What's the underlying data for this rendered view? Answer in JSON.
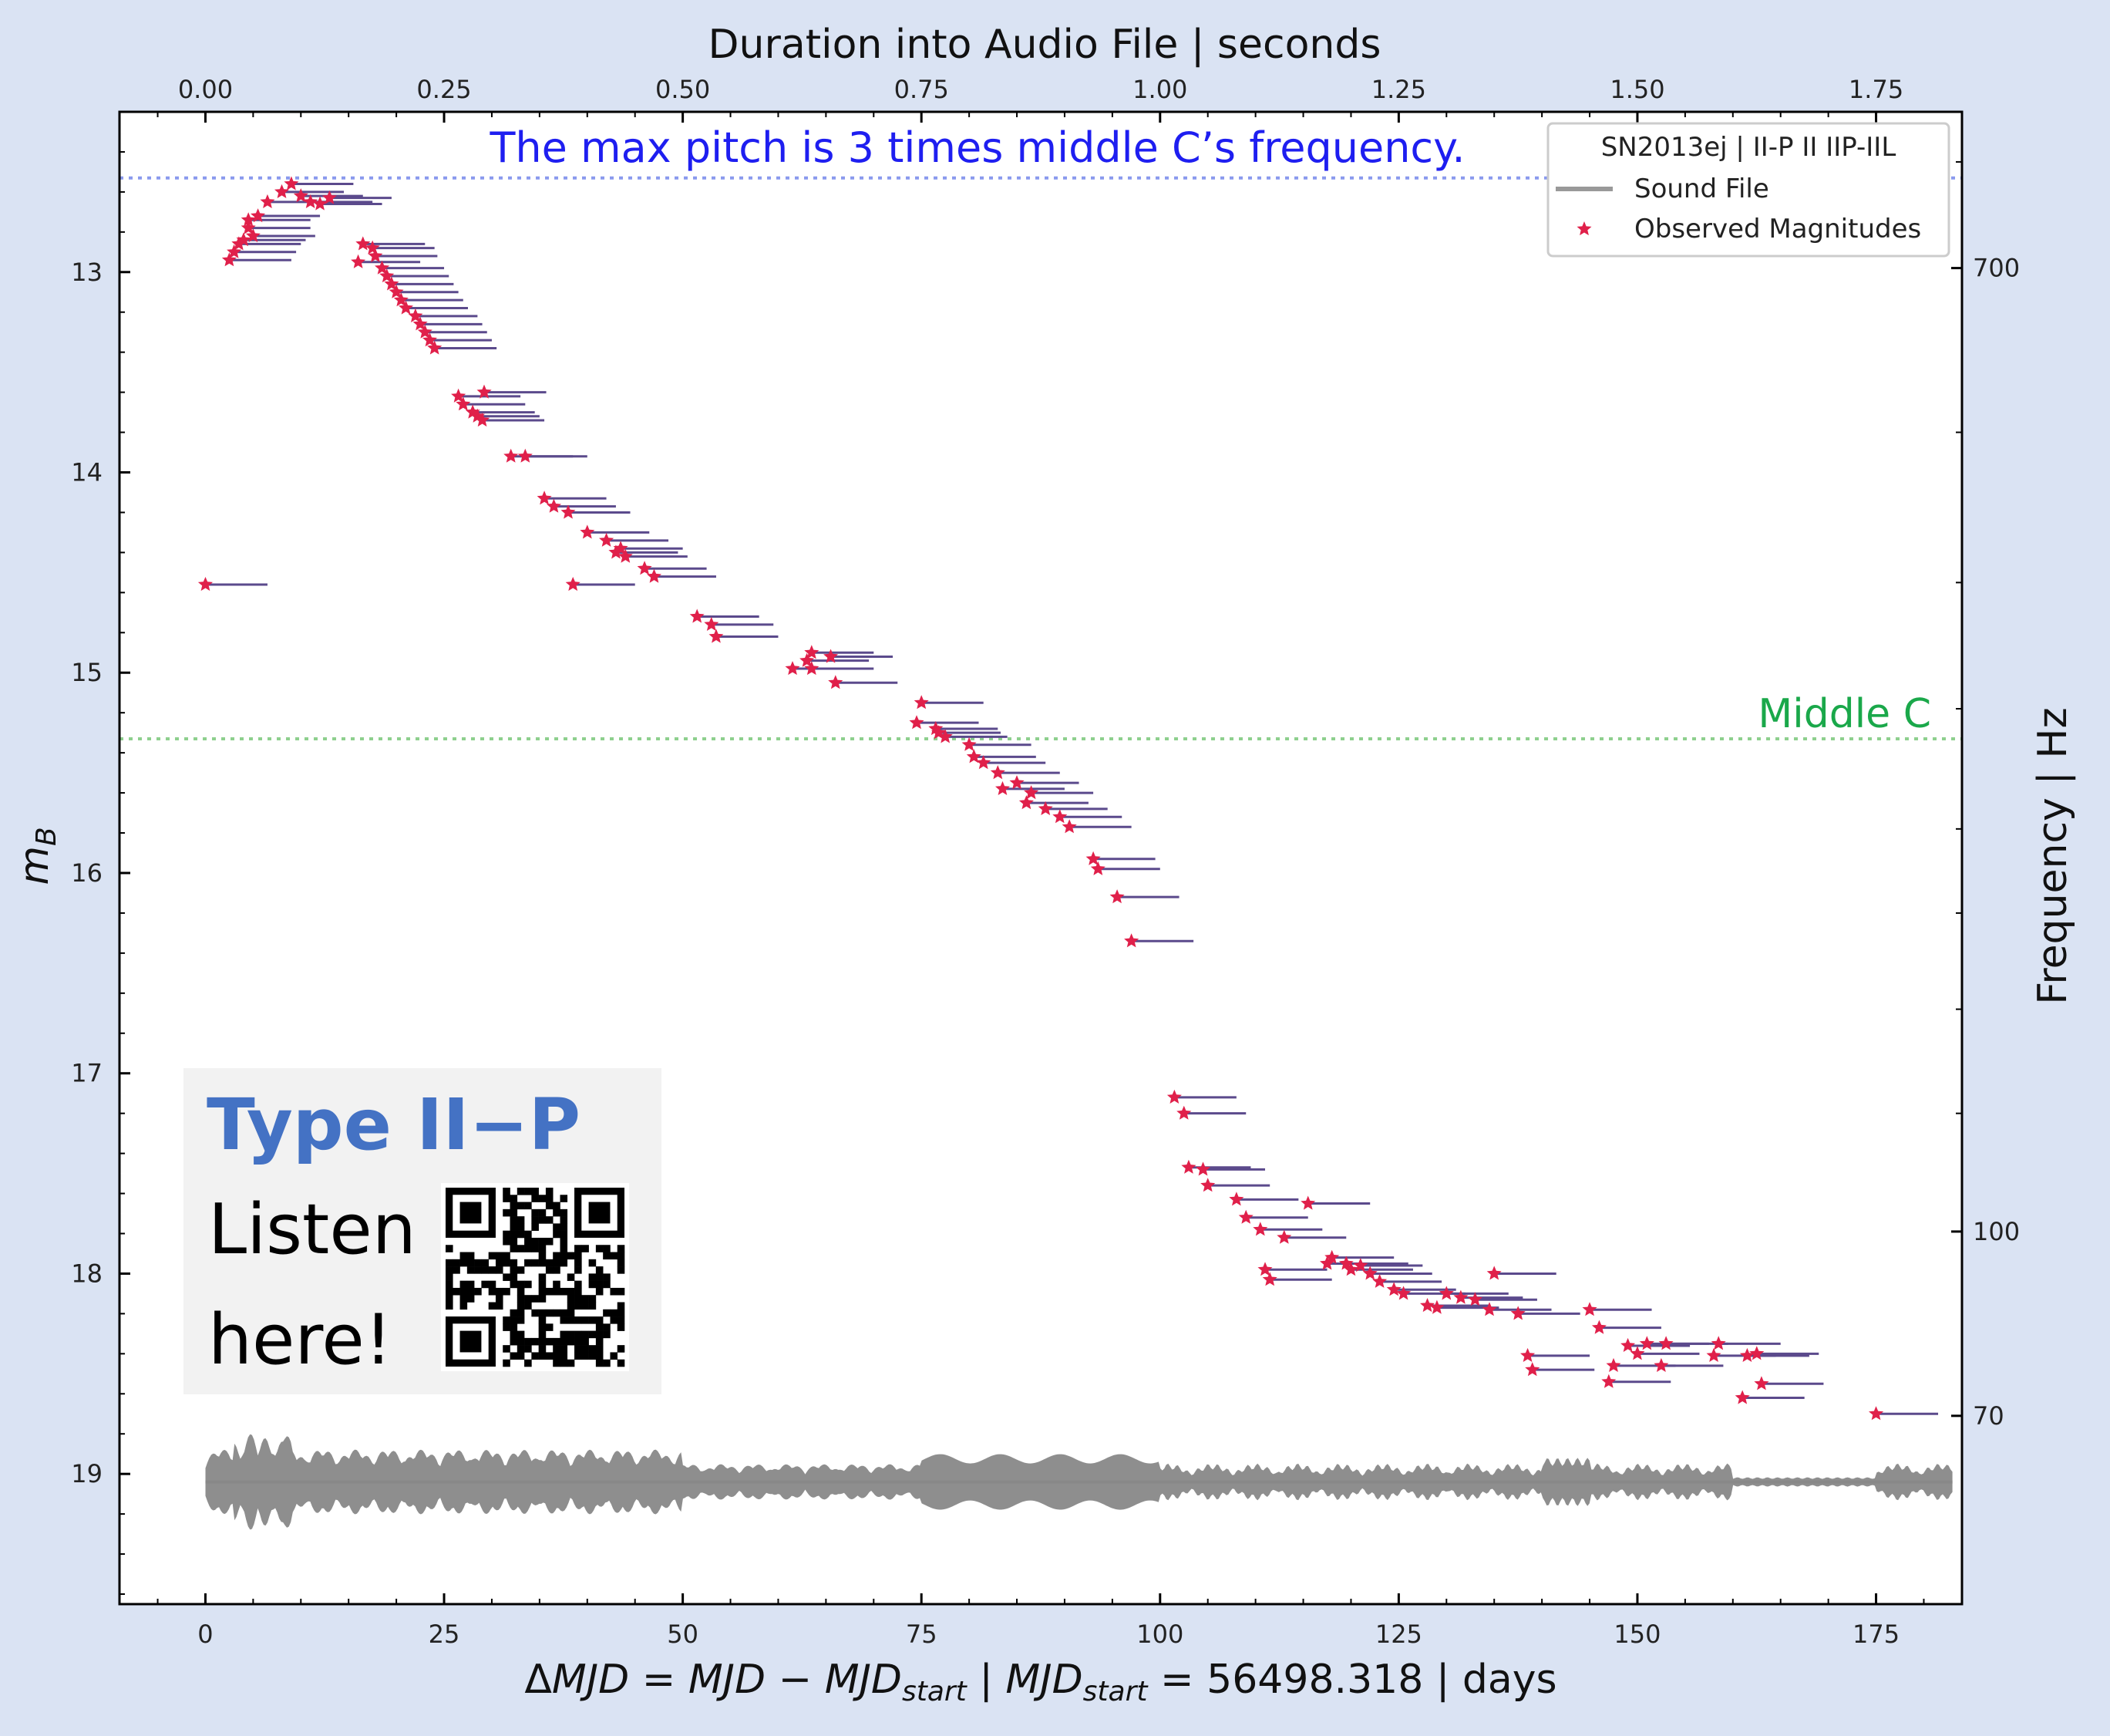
{
  "chart_data": {
    "type": "scatter",
    "top_axis": {
      "label": "Duration into Audio File | seconds",
      "ticks": [
        0.0,
        0.25,
        0.5,
        0.75,
        1.0,
        1.25,
        1.5,
        1.75
      ],
      "tick_labels": [
        "0.00",
        "0.25",
        "0.50",
        "0.75",
        "1.00",
        "1.25",
        "1.50",
        "1.75"
      ]
    },
    "xlabel_parts": {
      "delta": "Δ",
      "mjd1": "MJD",
      "eq1": " = ",
      "mjd2": "MJD",
      "minus": " − ",
      "mjd3": "MJD",
      "start1": "start",
      "sep1": "  |  ",
      "mjd4": "MJD",
      "start2": "start",
      "eq2": " = 56498.318 | days"
    },
    "ylabel_main": "m",
    "ylabel_sub": "B",
    "right_axis": {
      "label": "Frequency | Hz",
      "ticks": [
        700,
        100,
        70
      ],
      "tick_labels": [
        "700",
        "100",
        "70"
      ]
    },
    "x_ticks": [
      0,
      25,
      50,
      75,
      100,
      125,
      150,
      175
    ],
    "x_tick_labels": [
      "0",
      "25",
      "50",
      "75",
      "100",
      "125",
      "150",
      "175"
    ],
    "xlim": [
      -9,
      184
    ],
    "y_ticks": [
      13,
      14,
      15,
      16,
      17,
      18,
      19
    ],
    "y_tick_labels": [
      "13",
      "14",
      "15",
      "16",
      "17",
      "18",
      "19"
    ],
    "ylim": [
      19.65,
      12.2
    ],
    "grid": false,
    "annotations": {
      "max_pitch": "The max pitch is 3 times middle C’s frequency.",
      "max_pitch_y": 12.53,
      "middle_c": "Middle C",
      "middle_c_y": 15.33
    },
    "legend": {
      "position": "top-right",
      "title": "SN2013ej |  II-P II IIP-IIL",
      "items": [
        {
          "label": "Sound File",
          "marker": "line",
          "color": "#999999"
        },
        {
          "label": "Observed Magnitudes",
          "marker": "star",
          "color": "#e0204a"
        }
      ]
    },
    "colors": {
      "points": "#e0204a",
      "note_lines": "#5b4a8c",
      "sound": "#888888",
      "max_pitch_line": "#8a9aee",
      "middle_c_line": "#8ed08e",
      "annotation_blue": "#1e1ef0",
      "annotation_green": "#1aa84a",
      "badge_title": "#4472c4"
    },
    "series": [
      {
        "name": "Observed Magnitudes",
        "points": [
          [
            0.0,
            14.56
          ],
          [
            2.5,
            12.94
          ],
          [
            3.0,
            12.9
          ],
          [
            3.5,
            12.86
          ],
          [
            4.0,
            12.84
          ],
          [
            4.5,
            12.78
          ],
          [
            4.5,
            12.74
          ],
          [
            5.0,
            12.82
          ],
          [
            5.5,
            12.72
          ],
          [
            6.5,
            12.65
          ],
          [
            8.0,
            12.6
          ],
          [
            9.0,
            12.56
          ],
          [
            10.0,
            12.62
          ],
          [
            11.0,
            12.65
          ],
          [
            12.0,
            12.66
          ],
          [
            13.0,
            12.63
          ],
          [
            16.0,
            12.95
          ],
          [
            16.5,
            12.86
          ],
          [
            17.5,
            12.88
          ],
          [
            17.8,
            12.92
          ],
          [
            18.5,
            12.98
          ],
          [
            19.0,
            13.02
          ],
          [
            19.5,
            13.06
          ],
          [
            20.0,
            13.1
          ],
          [
            20.5,
            13.14
          ],
          [
            21.0,
            13.18
          ],
          [
            22.0,
            13.22
          ],
          [
            22.5,
            13.26
          ],
          [
            23.0,
            13.3
          ],
          [
            23.5,
            13.34
          ],
          [
            24.0,
            13.38
          ],
          [
            26.5,
            13.62
          ],
          [
            27.0,
            13.66
          ],
          [
            28.0,
            13.7
          ],
          [
            28.5,
            13.72
          ],
          [
            29.0,
            13.74
          ],
          [
            29.2,
            13.6
          ],
          [
            32.0,
            13.92
          ],
          [
            33.5,
            13.92
          ],
          [
            35.5,
            14.13
          ],
          [
            36.5,
            14.17
          ],
          [
            38.0,
            14.2
          ],
          [
            38.5,
            14.56
          ],
          [
            40.0,
            14.3
          ],
          [
            42.0,
            14.34
          ],
          [
            43.0,
            14.4
          ],
          [
            43.5,
            14.38
          ],
          [
            44.0,
            14.42
          ],
          [
            46.0,
            14.48
          ],
          [
            47.0,
            14.52
          ],
          [
            51.5,
            14.72
          ],
          [
            53.0,
            14.76
          ],
          [
            53.5,
            14.82
          ],
          [
            61.5,
            14.98
          ],
          [
            63.0,
            14.94
          ],
          [
            63.5,
            14.9
          ],
          [
            63.5,
            14.98
          ],
          [
            65.5,
            14.92
          ],
          [
            66.0,
            15.05
          ],
          [
            74.5,
            15.25
          ],
          [
            75.0,
            15.15
          ],
          [
            76.5,
            15.28
          ],
          [
            76.8,
            15.3
          ],
          [
            77.5,
            15.32
          ],
          [
            80.0,
            15.36
          ],
          [
            80.5,
            15.42
          ],
          [
            81.5,
            15.45
          ],
          [
            83.0,
            15.5
          ],
          [
            83.5,
            15.58
          ],
          [
            85.0,
            15.55
          ],
          [
            86.0,
            15.65
          ],
          [
            86.5,
            15.6
          ],
          [
            88.0,
            15.68
          ],
          [
            89.5,
            15.72
          ],
          [
            90.5,
            15.77
          ],
          [
            93.0,
            15.93
          ],
          [
            93.5,
            15.98
          ],
          [
            95.5,
            16.12
          ],
          [
            97.0,
            16.34
          ],
          [
            101.5,
            17.12
          ],
          [
            102.5,
            17.2
          ],
          [
            103.0,
            17.47
          ],
          [
            104.5,
            17.48
          ],
          [
            105.0,
            17.56
          ],
          [
            108.0,
            17.63
          ],
          [
            109.0,
            17.72
          ],
          [
            110.5,
            17.78
          ],
          [
            111.0,
            17.98
          ],
          [
            111.5,
            18.03
          ],
          [
            113.0,
            17.82
          ],
          [
            115.5,
            17.65
          ],
          [
            117.5,
            17.95
          ],
          [
            118.0,
            17.92
          ],
          [
            119.5,
            17.95
          ],
          [
            120.0,
            17.98
          ],
          [
            121.0,
            17.96
          ],
          [
            122.0,
            18.0
          ],
          [
            123.0,
            18.04
          ],
          [
            124.5,
            18.08
          ],
          [
            125.5,
            18.1
          ],
          [
            128.0,
            18.16
          ],
          [
            129.0,
            18.17
          ],
          [
            130.0,
            18.1
          ],
          [
            131.5,
            18.12
          ],
          [
            133.0,
            18.13
          ],
          [
            134.5,
            18.18
          ],
          [
            135.0,
            18.0
          ],
          [
            137.5,
            18.2
          ],
          [
            138.5,
            18.41
          ],
          [
            139.0,
            18.48
          ],
          [
            145.0,
            18.18
          ],
          [
            146.0,
            18.27
          ],
          [
            147.0,
            18.54
          ],
          [
            147.5,
            18.46
          ],
          [
            149.0,
            18.36
          ],
          [
            150.0,
            18.4
          ],
          [
            151.0,
            18.35
          ],
          [
            152.5,
            18.46
          ],
          [
            153.0,
            18.35
          ],
          [
            158.0,
            18.41
          ],
          [
            158.5,
            18.35
          ],
          [
            161.0,
            18.62
          ],
          [
            161.5,
            18.41
          ],
          [
            162.5,
            18.4
          ],
          [
            163.0,
            18.55
          ],
          [
            175.0,
            18.7
          ]
        ]
      }
    ],
    "note_length_days": 6.5,
    "sound_baseline_y": 19.04
  }
}
